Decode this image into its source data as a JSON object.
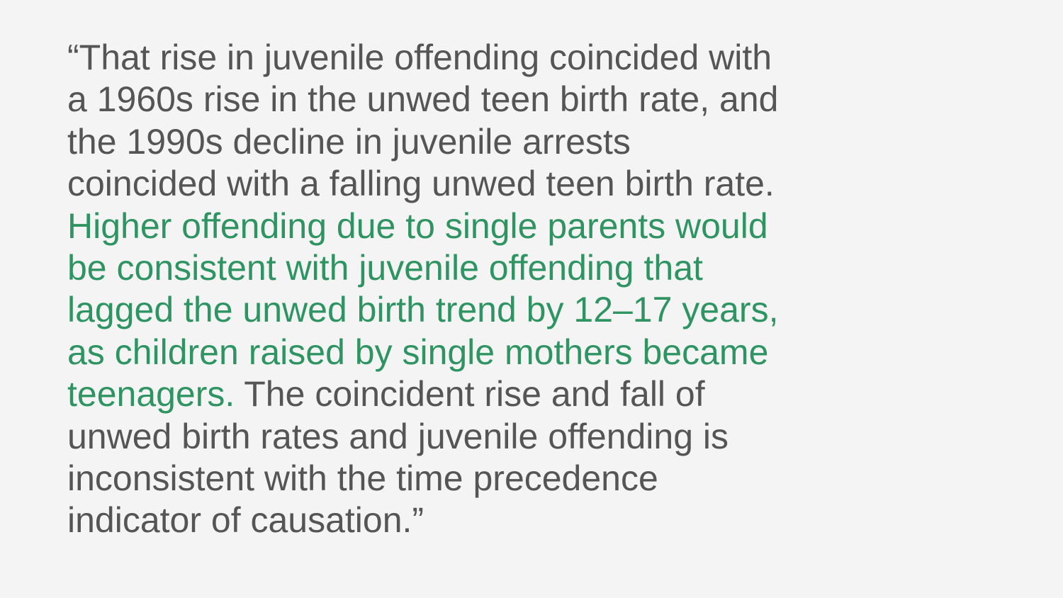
{
  "quote": {
    "colors": {
      "text": "#555555",
      "highlight": "#2e9461",
      "background": "#f4f4f4"
    },
    "lines": [
      "“That rise in juvenile offending coincided with",
      "a 1960s rise in the unwed teen birth rate, and",
      "the 1990s decline in juvenile arrests",
      "coincided with a falling unwed teen birth rate.",
      "Higher offending due to single parents would",
      "be consistent with juvenile offending that",
      "lagged the unwed birth trend by 12–17 years,",
      "as children raised by single mothers became",
      "teenagers.",
      " The coincident rise and fall of",
      "unwed birth rates and juvenile offending is",
      "inconsistent with the time precedence",
      "indicator of causation.”"
    ]
  }
}
